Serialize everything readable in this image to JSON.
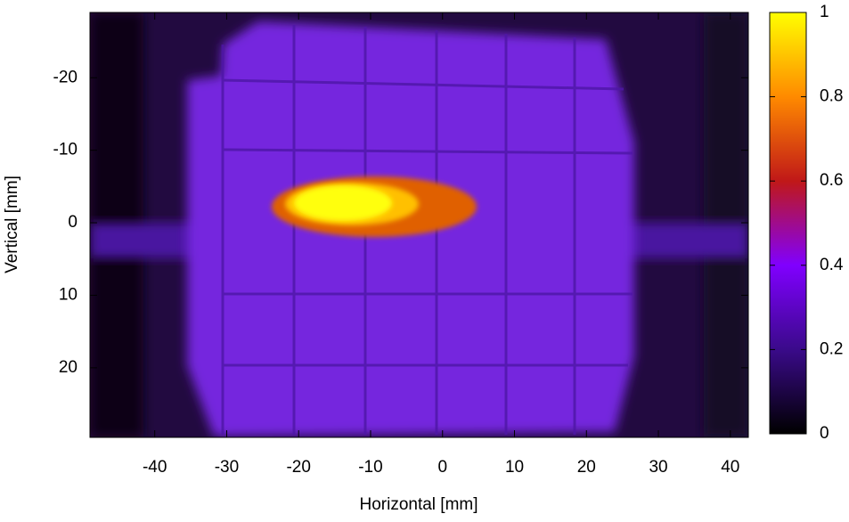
{
  "chart_data": {
    "type": "heatmap",
    "xlabel": "Horizontal [mm]",
    "ylabel": "Vertical [mm]",
    "xlim": [
      -49,
      42.5
    ],
    "xticks": [
      -40,
      -30,
      -20,
      -10,
      0,
      10,
      20,
      30,
      40
    ],
    "ylim": [
      -29,
      29.6
    ],
    "yticks": [
      -20,
      -10,
      0,
      10,
      20
    ],
    "zlim": [
      0,
      1
    ],
    "zticks": [
      0,
      0.2,
      0.4,
      0.6,
      0.8,
      1
    ],
    "colormap": [
      "#000000",
      "#3a0a8a",
      "#8000ff",
      "#c01818",
      "#ff8a00",
      "#ffff00"
    ]
  }
}
